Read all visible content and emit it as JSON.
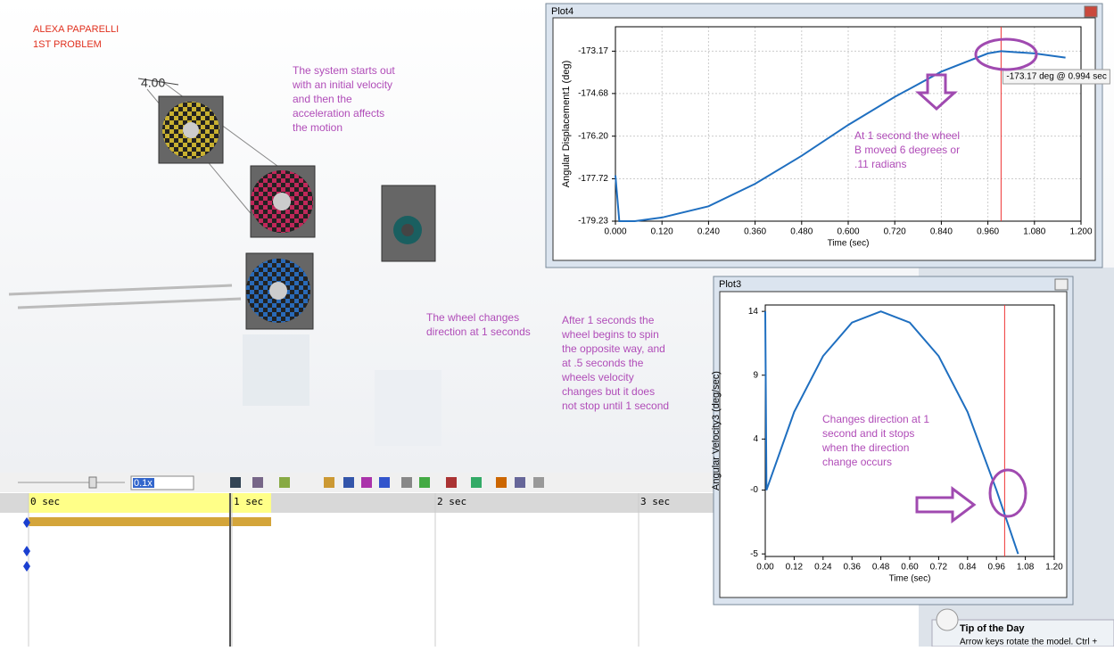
{
  "doc": {
    "author": "ALEXA PAPARELLI",
    "problem": "1ST PROBLEM",
    "dimension": "4.00",
    "notes": [
      [
        "The system starts out",
        "with an initial velocity",
        "and then the",
        "acceleration affects",
        "the motion"
      ],
      [
        "The wheel changes",
        "direction at  1 seconds"
      ],
      [
        "After 1 seconds the",
        "wheel begins to spin",
        "the opposite way, and",
        "at .5 seconds the",
        "wheels velocity",
        "changes but it does",
        "not stop until 1 second"
      ]
    ]
  },
  "timeline": {
    "speed": "0.1x",
    "marks": [
      "0 sec",
      "1 sec",
      "2 sec",
      "3 sec"
    ]
  },
  "tip": {
    "title": "Tip of the Day",
    "text": "Arrow keys rotate the model. Ctrl +"
  },
  "chart_data": [
    {
      "type": "line",
      "window_title": "Plot4",
      "x_label": "Time (sec)",
      "y_label": "Angular Displacement1 (deg)",
      "color": "#1f6fc0",
      "x": [
        0,
        0.01,
        0.05,
        0.12,
        0.24,
        0.36,
        0.48,
        0.6,
        0.72,
        0.84,
        0.96,
        0.994,
        1.08,
        1.16
      ],
      "values": [
        -177.6,
        -179.23,
        -179.23,
        -179.1,
        -178.7,
        -177.9,
        -176.9,
        -175.8,
        -174.8,
        -173.9,
        -173.25,
        -173.17,
        -173.25,
        -173.4
      ],
      "xlim": [
        0,
        1.2
      ],
      "ylim": [
        -179.23,
        -172.3
      ],
      "xticks": [
        {
          "value": 0,
          "label": "0.000"
        },
        {
          "value": 0.12,
          "label": "0.120"
        },
        {
          "value": 0.24,
          "label": "0.240"
        },
        {
          "value": 0.36,
          "label": "0.360"
        },
        {
          "value": 0.48,
          "label": "0.480"
        },
        {
          "value": 0.6,
          "label": "0.600"
        },
        {
          "value": 0.72,
          "label": "0.720"
        },
        {
          "value": 0.84,
          "label": "0.840"
        },
        {
          "value": 0.96,
          "label": "0.960"
        },
        {
          "value": 1.08,
          "label": "1.080"
        },
        {
          "value": 1.2,
          "label": "1.200"
        }
      ],
      "yticks": [
        {
          "value": -179.23,
          "label": "-179.23"
        },
        {
          "value": -177.72,
          "label": "-177.72"
        },
        {
          "value": -176.2,
          "label": "-176.20"
        },
        {
          "value": -174.68,
          "label": "-174.68"
        },
        {
          "value": -173.17,
          "label": "-173.17"
        }
      ],
      "grid": true,
      "cursor_x": 0.994,
      "tooltip": "-173.17 deg @ 0.994 sec",
      "annotation": [
        "At 1 second the wheel",
        "B moved 6 degrees or",
        ".11  radians"
      ]
    },
    {
      "type": "line",
      "window_title": "Plot3",
      "x_label": "Time (sec)",
      "y_label": "Angular Velocity3 (deg/sec)",
      "color": "#1f6fc0",
      "x": [
        0,
        0.005,
        0.12,
        0.24,
        0.36,
        0.48,
        0.6,
        0.72,
        0.84,
        0.96,
        1.05
      ],
      "values": [
        14,
        0,
        6.12,
        10.5,
        13.12,
        14,
        13.12,
        10.5,
        6.12,
        0,
        -5
      ],
      "xlim": [
        0,
        1.2
      ],
      "ylim": [
        -5.2,
        14.5
      ],
      "xticks": [
        {
          "value": 0,
          "label": "0.00"
        },
        {
          "value": 0.12,
          "label": "0.12"
        },
        {
          "value": 0.24,
          "label": "0.24"
        },
        {
          "value": 0.36,
          "label": "0.36"
        },
        {
          "value": 0.48,
          "label": "0.48"
        },
        {
          "value": 0.6,
          "label": "0.60"
        },
        {
          "value": 0.72,
          "label": "0.72"
        },
        {
          "value": 0.84,
          "label": "0.84"
        },
        {
          "value": 0.96,
          "label": "0.96"
        },
        {
          "value": 1.08,
          "label": "1.08"
        },
        {
          "value": 1.2,
          "label": "1.20"
        }
      ],
      "yticks": [
        14,
        9,
        4,
        {
          "value": 0,
          "label": "-0"
        },
        -5
      ],
      "grid": false,
      "cursor_x": 0.994,
      "annotation": [
        "Changes direction at 1",
        "second and it stops",
        "when the direction",
        "change occurs"
      ]
    }
  ]
}
